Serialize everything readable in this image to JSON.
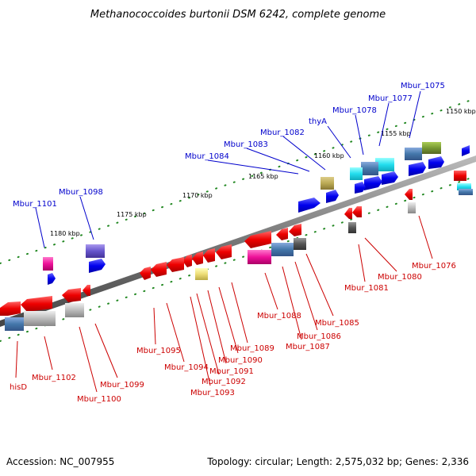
{
  "title": "Methanococcoides burtonii DSM 6242, complete genome",
  "accession": "Accession: NC_007955",
  "topology": "Topology: circular; Length: 2,575,032 bp; Genes: 2,336",
  "scale_labels": [
    "1150 kbp",
    "1155 kbp",
    "1160 kbp",
    "1165 kbp",
    "1170 kbp",
    "1175 kbp",
    "1180 kbp"
  ],
  "top_labels": [
    "Mbur_1075",
    "Mbur_1077",
    "Mbur_1078",
    "thyA",
    "Mbur_1082",
    "Mbur_1083",
    "Mbur_1084",
    "Mbur_1098",
    "Mbur_1101"
  ],
  "bottom_labels": [
    "Mbur_1076",
    "Mbur_1080",
    "Mbur_1081",
    "Mbur_1085",
    "Mbur_1086",
    "Mbur_1087",
    "Mbur_1088",
    "Mbur_1089",
    "Mbur_1090",
    "Mbur_1091",
    "Mbur_1092",
    "Mbur_1093",
    "Mbur_1094",
    "Mbur_1095",
    "Mbur_1099",
    "Mbur_1100",
    "Mbur_1102",
    "hisD"
  ],
  "colors": {
    "forward_gene": "#2020ee",
    "reverse_gene": "#ee1111",
    "backbone": "#777777",
    "scale_ticks": "#228822",
    "top_label": "#0000cc",
    "bottom_label": "#cc0000"
  }
}
